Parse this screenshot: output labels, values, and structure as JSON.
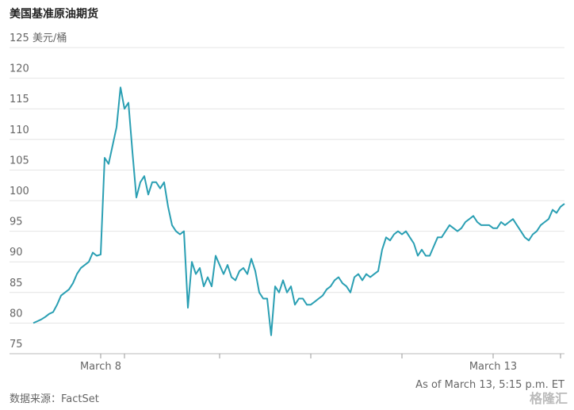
{
  "chart_data": {
    "type": "line",
    "title": "美国基准原油期货",
    "note": "As of March 13, 5:15 p.m. ET",
    "source": "数据来源：FactSet",
    "watermark": "格隆汇",
    "color": "#2a9fb3",
    "grid": true,
    "categories": [
      null,
      null,
      null,
      null,
      null,
      null,
      null,
      null,
      null,
      null,
      null,
      null,
      null,
      null,
      null,
      null,
      null,
      "March 8",
      null,
      null,
      null,
      null,
      null,
      null,
      null,
      null,
      null,
      null,
      null,
      null,
      null,
      null,
      null,
      null,
      null,
      null,
      null,
      null,
      null,
      null,
      null,
      null,
      null,
      null,
      null,
      null,
      null,
      null,
      null,
      null,
      null,
      null,
      null,
      null,
      null,
      null,
      null,
      null,
      null,
      null,
      null,
      null,
      null,
      null,
      null,
      null,
      null,
      null,
      null,
      null,
      null,
      null,
      null,
      null,
      null,
      null,
      null,
      null,
      null,
      null,
      null,
      null,
      null,
      null,
      null,
      null,
      null,
      null,
      null,
      null,
      null,
      null,
      null,
      null,
      null,
      null,
      null,
      null,
      null,
      null,
      null,
      null,
      null,
      null,
      null,
      null,
      null,
      null,
      null,
      null,
      null,
      null,
      null,
      null,
      null,
      null,
      "March 13",
      null,
      null,
      null,
      null,
      null,
      null,
      null,
      null,
      null,
      null,
      null,
      null,
      null,
      null,
      null,
      null,
      null,
      null
    ],
    "values": [
      80,
      80.3,
      80.6,
      81,
      81.5,
      81.8,
      83,
      84.5,
      85,
      85.5,
      86.5,
      88,
      89,
      89.5,
      90,
      91.5,
      91,
      91.2,
      107,
      106,
      109,
      112,
      118.5,
      115,
      116,
      108,
      100.5,
      103,
      104,
      101,
      103,
      103,
      102,
      103,
      99,
      96,
      95,
      94.5,
      95,
      82.5,
      90,
      88,
      89,
      86,
      87.5,
      86,
      91,
      89.5,
      88,
      89.5,
      87.5,
      87,
      88.5,
      89,
      88,
      90.5,
      88.5,
      85,
      84,
      84,
      78,
      86,
      85,
      87,
      85,
      86,
      83,
      84,
      84,
      83,
      83,
      83.5,
      84,
      84.5,
      85.5,
      86,
      87,
      87.5,
      86.5,
      86,
      85,
      87.5,
      88,
      87,
      88,
      87.5,
      88,
      88.5,
      92,
      94,
      93.5,
      94.5,
      95,
      94.5,
      95,
      94,
      93,
      91,
      92,
      91,
      91,
      92.5,
      94,
      94,
      95,
      96,
      95.5,
      95,
      95.5,
      96.5,
      97,
      97.5,
      96.5,
      96,
      96,
      96,
      95.5,
      95.5,
      96.5,
      96,
      96.5,
      97,
      96,
      95,
      94,
      93.5,
      94.5,
      95,
      96,
      96.5,
      97,
      98.5,
      98,
      99,
      99.5
    ],
    "xticks": [
      17,
      23,
      47,
      70,
      93,
      116,
      133
    ],
    "ylim": [
      75,
      125
    ],
    "yticks": [
      75,
      80,
      85,
      90,
      95,
      100,
      105,
      110,
      115,
      120,
      {
        "value": 125,
        "label": "125 美元/桶"
      }
    ]
  }
}
